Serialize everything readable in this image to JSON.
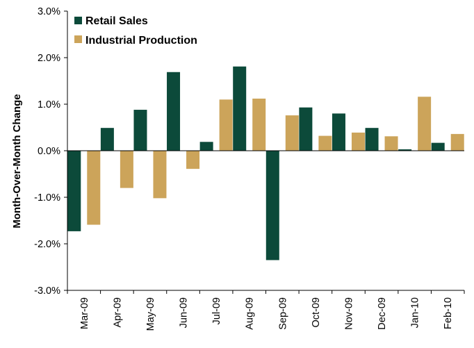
{
  "chart_data": {
    "type": "bar",
    "ylabel": "Month-Over-Month  Change",
    "xlabel": "",
    "categories": [
      "Mar-09",
      "Apr-09",
      "May-09",
      "Jun-09",
      "Jul-09",
      "Aug-09",
      "Sep-09",
      "Oct-09",
      "Nov-09",
      "Dec-09",
      "Jan-10",
      "Feb-10"
    ],
    "series": [
      {
        "name": "Retail Sales",
        "color": "#0c4a3a",
        "values": [
          -1.73,
          0.49,
          0.88,
          1.69,
          0.19,
          1.81,
          -2.35,
          0.93,
          0.8,
          0.49,
          0.03,
          0.17
        ]
      },
      {
        "name": "Industrial Production",
        "color": "#cca45a",
        "values": [
          -1.59,
          -0.8,
          -1.02,
          -0.39,
          1.1,
          1.12,
          0.76,
          0.32,
          0.39,
          0.31,
          1.16,
          0.36
        ]
      }
    ],
    "ylim": [
      -3.0,
      3.0
    ],
    "yticks": [
      "-3.0%",
      "-2.0%",
      "-1.0%",
      "0.0%",
      "1.0%",
      "2.0%",
      "3.0%"
    ],
    "grid": false,
    "legend_position": "top-left"
  }
}
